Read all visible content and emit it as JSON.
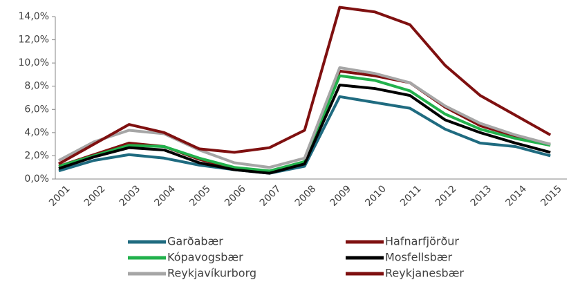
{
  "chart_data": {
    "type": "line",
    "categories": [
      "2001",
      "2002",
      "2003",
      "2004",
      "2005",
      "2006",
      "2007",
      "2008",
      "2009",
      "2010",
      "2011",
      "2012",
      "2013",
      "2014",
      "2015"
    ],
    "series": [
      {
        "name": "Garðabær",
        "color": "#1f6b80",
        "values": [
          0.7,
          1.6,
          2.1,
          1.8,
          1.2,
          0.8,
          0.5,
          1.1,
          7.1,
          6.6,
          6.1,
          4.3,
          3.1,
          2.8,
          2.0
        ]
      },
      {
        "name": "Hafnarfjörður",
        "color": "#7f1010",
        "values": [
          1.1,
          2.1,
          3.1,
          2.8,
          1.7,
          0.9,
          0.6,
          1.4,
          9.3,
          8.9,
          8.3,
          6.2,
          4.6,
          3.7,
          3.0
        ]
      },
      {
        "name": "Kópavogsbær",
        "color": "#22b14c",
        "values": [
          1.1,
          2.0,
          2.9,
          2.8,
          1.8,
          1.0,
          0.7,
          1.5,
          8.9,
          8.5,
          7.6,
          5.6,
          4.3,
          3.5,
          2.9
        ]
      },
      {
        "name": "Mosfellsbær",
        "color": "#000000",
        "values": [
          0.9,
          1.9,
          2.7,
          2.5,
          1.4,
          0.8,
          0.5,
          1.3,
          8.1,
          7.8,
          7.2,
          5.1,
          4.0,
          3.1,
          2.3
        ]
      },
      {
        "name": "Reykjavíkurborg",
        "color": "#a6a6a6",
        "values": [
          1.6,
          3.2,
          4.2,
          3.9,
          2.5,
          1.4,
          1.0,
          1.8,
          9.6,
          9.1,
          8.3,
          6.3,
          4.8,
          3.8,
          3.0
        ]
      },
      {
        "name": "Reykjanesbær",
        "color": "#7f1010",
        "values": [
          1.3,
          3.0,
          4.7,
          4.0,
          2.6,
          2.3,
          2.7,
          4.2,
          14.8,
          14.4,
          13.3,
          9.8,
          7.2,
          5.5,
          3.8
        ]
      }
    ],
    "ylim": [
      0,
      14
    ],
    "yticks": [
      {
        "value": 0,
        "label": "0,0%"
      },
      {
        "value": 2,
        "label": "2,0%"
      },
      {
        "value": 4,
        "label": "4,0%"
      },
      {
        "value": 6,
        "label": "6,0%"
      },
      {
        "value": 8,
        "label": "8,0%"
      },
      {
        "value": 10,
        "label": "10,0%"
      },
      {
        "value": 12,
        "label": "12,0%"
      },
      {
        "value": 14,
        "label": "14,0%"
      }
    ],
    "grid": false
  }
}
